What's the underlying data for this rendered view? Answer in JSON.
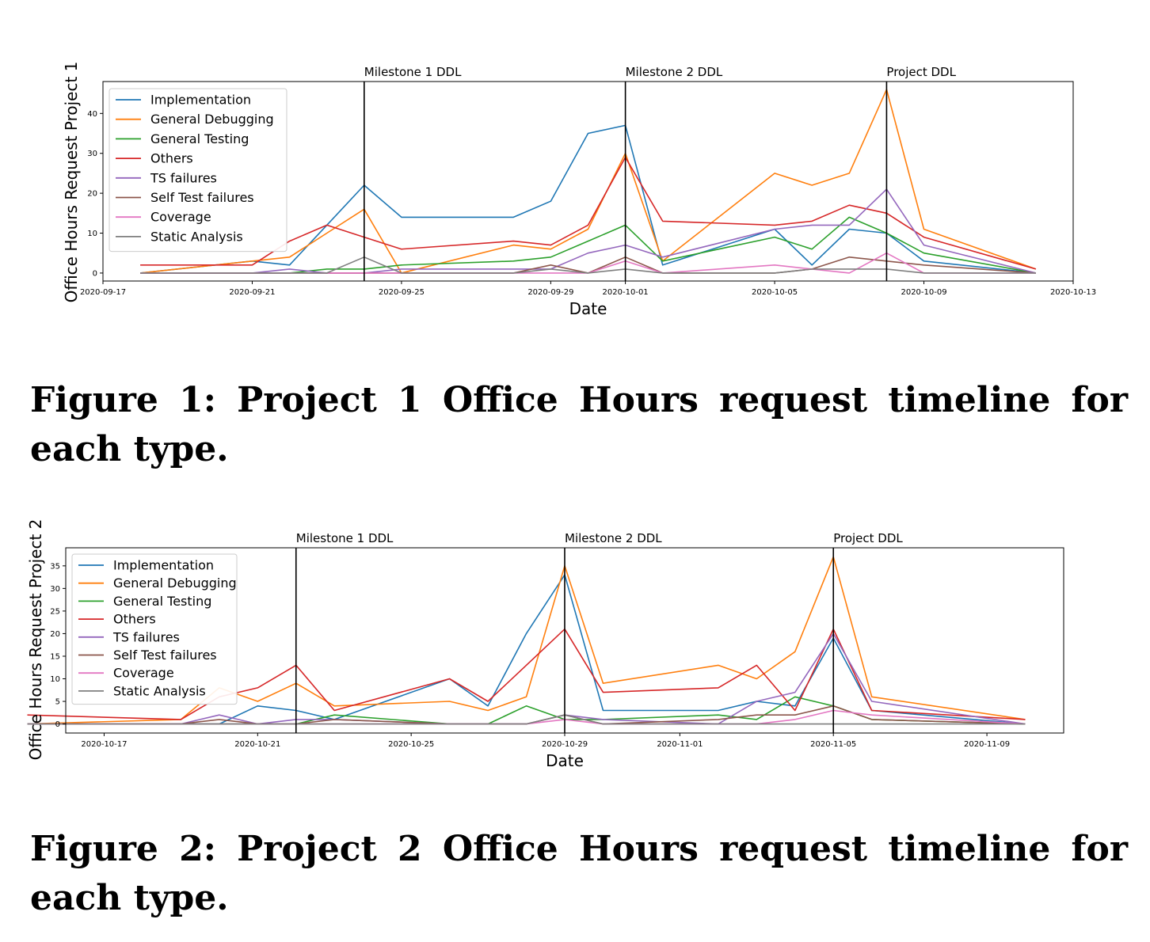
{
  "chart_data": [
    {
      "type": "line",
      "xlabel": "Date",
      "ylabel": "Office Hours Request Project 1",
      "xlim": [
        "2020-09-17",
        "2020-10-13"
      ],
      "ylim": [
        -2,
        48
      ],
      "yticks": [
        0,
        10,
        20,
        30,
        40
      ],
      "xticks": [
        "2020-09-17",
        "2020-09-21",
        "2020-09-25",
        "2020-09-29",
        "2020-10-01",
        "2020-10-05",
        "2020-10-09",
        "2020-10-13"
      ],
      "legend_position": "top-left",
      "grid": false,
      "milestones": [
        {
          "label": "Milestone 1 DDL",
          "date": "2020-09-24"
        },
        {
          "label": "Milestone 2 DDL",
          "date": "2020-10-01"
        },
        {
          "label": "Project DDL",
          "date": "2020-10-08"
        }
      ],
      "x": [
        "2020-09-18",
        "2020-09-21",
        "2020-09-22",
        "2020-09-23",
        "2020-09-24",
        "2020-09-25",
        "2020-09-28",
        "2020-09-29",
        "2020-09-30",
        "2020-10-01",
        "2020-10-02",
        "2020-10-05",
        "2020-10-06",
        "2020-10-07",
        "2020-10-08",
        "2020-10-09",
        "2020-10-12"
      ],
      "series": [
        {
          "name": "Implementation",
          "color": "#1f77b4",
          "values": [
            0,
            3,
            2,
            12,
            22,
            14,
            14,
            18,
            35,
            37,
            2,
            11,
            2,
            11,
            10,
            3,
            0
          ]
        },
        {
          "name": "General Debugging",
          "color": "#ff7f0e",
          "values": [
            0,
            3,
            4,
            10,
            16,
            0,
            7,
            6,
            11,
            30,
            3,
            25,
            22,
            25,
            46,
            11,
            1
          ]
        },
        {
          "name": "General Testing",
          "color": "#2ca02c",
          "values": [
            0,
            0,
            0,
            1,
            1,
            2,
            3,
            4,
            8,
            12,
            3,
            9,
            6,
            14,
            10,
            5,
            0
          ]
        },
        {
          "name": "Others",
          "color": "#d62728",
          "values": [
            2,
            2,
            8,
            12,
            9,
            6,
            8,
            7,
            12,
            29,
            13,
            12,
            13,
            17,
            15,
            9,
            1
          ]
        },
        {
          "name": "TS failures",
          "color": "#9467bd",
          "values": [
            0,
            0,
            1,
            0,
            0,
            1,
            1,
            1,
            5,
            7,
            4,
            11,
            12,
            12,
            21,
            7,
            0
          ]
        },
        {
          "name": "Self Test failures",
          "color": "#8c564b",
          "values": [
            0,
            0,
            0,
            0,
            0,
            0,
            0,
            2,
            0,
            4,
            0,
            0,
            1,
            4,
            3,
            2,
            0
          ]
        },
        {
          "name": "Coverage",
          "color": "#e377c2",
          "values": [
            0,
            0,
            0,
            0,
            0,
            0,
            0,
            0,
            0,
            3,
            0,
            2,
            1,
            0,
            5,
            0,
            0
          ]
        },
        {
          "name": "Static Analysis",
          "color": "#7f7f7f",
          "values": [
            0,
            0,
            0,
            0,
            4,
            0,
            0,
            1,
            0,
            1,
            0,
            0,
            1,
            1,
            1,
            0,
            0
          ]
        }
      ]
    },
    {
      "type": "line",
      "xlabel": "Date",
      "ylabel": "Office Hours Request Project 2",
      "xlim": [
        "2020-10-16",
        "2020-11-11"
      ],
      "ylim": [
        -2,
        39
      ],
      "yticks": [
        0,
        5,
        10,
        15,
        20,
        25,
        30,
        35
      ],
      "xticks": [
        "2020-10-17",
        "2020-10-21",
        "2020-10-25",
        "2020-10-29",
        "2020-11-01",
        "2020-11-05",
        "2020-11-09"
      ],
      "legend_position": "top-left",
      "grid": false,
      "milestones": [
        {
          "label": "Milestone 1 DDL",
          "date": "2020-10-22"
        },
        {
          "label": "Milestone 2 DDL",
          "date": "2020-10-29"
        },
        {
          "label": "Project DDL",
          "date": "2020-11-05"
        }
      ],
      "x": [
        "2020-10-15",
        "2020-10-19",
        "2020-10-20",
        "2020-10-21",
        "2020-10-22",
        "2020-10-23",
        "2020-10-26",
        "2020-10-27",
        "2020-10-28",
        "2020-10-29",
        "2020-10-30",
        "2020-11-02",
        "2020-11-03",
        "2020-11-04",
        "2020-11-05",
        "2020-11-06",
        "2020-11-10"
      ],
      "series": [
        {
          "name": "Implementation",
          "color": "#1f77b4",
          "values": [
            0,
            0,
            0,
            4,
            3,
            1,
            10,
            4,
            20,
            33,
            3,
            3,
            5,
            4,
            19,
            3,
            0
          ]
        },
        {
          "name": "General Debugging",
          "color": "#ff7f0e",
          "values": [
            0,
            1,
            8,
            5,
            9,
            4,
            5,
            3,
            6,
            35,
            9,
            13,
            10,
            16,
            37,
            6,
            1
          ]
        },
        {
          "name": "General Testing",
          "color": "#2ca02c",
          "values": [
            0,
            0,
            0,
            0,
            0,
            2,
            0,
            0,
            4,
            1,
            1,
            2,
            1,
            6,
            4,
            1,
            0
          ]
        },
        {
          "name": "Others",
          "color": "#d62728",
          "values": [
            2,
            1,
            6,
            8,
            13,
            3,
            10,
            5,
            13,
            21,
            7,
            8,
            13,
            3,
            21,
            3,
            1
          ]
        },
        {
          "name": "TS failures",
          "color": "#9467bd",
          "values": [
            0,
            0,
            2,
            0,
            1,
            1,
            0,
            0,
            0,
            2,
            1,
            0,
            5,
            7,
            20,
            5,
            0
          ]
        },
        {
          "name": "Self Test failures",
          "color": "#8c564b",
          "values": [
            0,
            0,
            1,
            0,
            0,
            1,
            0,
            0,
            0,
            2,
            0,
            1,
            2,
            2,
            4,
            1,
            0
          ]
        },
        {
          "name": "Coverage",
          "color": "#e377c2",
          "values": [
            0,
            0,
            0,
            0,
            0,
            0,
            0,
            0,
            0,
            1,
            0,
            0,
            0,
            1,
            3,
            2,
            0
          ]
        },
        {
          "name": "Static Analysis",
          "color": "#7f7f7f",
          "values": [
            0,
            0,
            0,
            0,
            0,
            0,
            0,
            0,
            0,
            2,
            0,
            0,
            0,
            0,
            0,
            0,
            0
          ]
        }
      ]
    }
  ],
  "captions": [
    "Figure 1: Project 1 Office Hours request timeline for each type.",
    "Figure 2: Project 2 Office Hours request timeline for each type."
  ]
}
